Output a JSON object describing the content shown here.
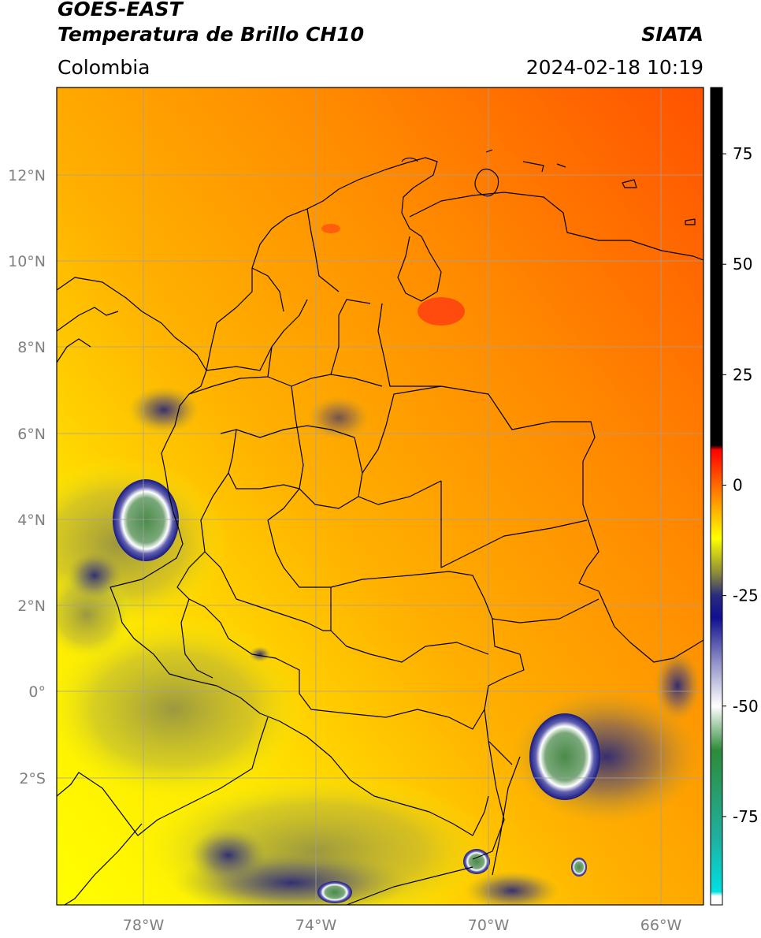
{
  "header": {
    "title_line1": "GOES-EAST",
    "title_line2": "Temperatura de Brillo CH10",
    "region": "Colombia",
    "agency": "SIATA",
    "datetime": "2024-02-18 10:19"
  },
  "map": {
    "lon_ticks": [
      "78°W",
      "74°W",
      "70°W",
      "66°W"
    ],
    "lat_ticks": [
      "12°N",
      "10°N",
      "8°N",
      "6°N",
      "4°N",
      "2°N",
      "0°",
      "2°S"
    ],
    "extent": {
      "lon_min": -80.0,
      "lon_max": -65.0,
      "lat_min": -5.0,
      "lat_max": 14.0
    },
    "gridline_color": "#a0a0a0"
  },
  "colorbar": {
    "labels": [
      "75",
      "50",
      "25",
      "0",
      "-25",
      "-50",
      "-75"
    ],
    "range": [
      -95,
      90
    ],
    "stops": [
      {
        "value": 90,
        "color": "#000000"
      },
      {
        "value": 9,
        "color": "#000000"
      },
      {
        "value": 8,
        "color": "#ff0000"
      },
      {
        "value": 0,
        "color": "#ff6a00"
      },
      {
        "value": -12,
        "color": "#ffff00"
      },
      {
        "value": -20,
        "color": "#8a8a3a"
      },
      {
        "value": -25,
        "color": "#2a2a80"
      },
      {
        "value": -30,
        "color": "#101090"
      },
      {
        "value": -40,
        "color": "#9090c8"
      },
      {
        "value": -50,
        "color": "#ffffff"
      },
      {
        "value": -60,
        "color": "#2e8b3a"
      },
      {
        "value": -80,
        "color": "#20b0a0"
      },
      {
        "value": -92,
        "color": "#00e0e0"
      },
      {
        "value": -93,
        "color": "#ffffff"
      },
      {
        "value": -95,
        "color": "#ffffff"
      }
    ]
  },
  "colors": {
    "warm_ne": "#ff5a00",
    "mid": "#ff9a00",
    "cool": "#ffd400",
    "yellow": "#ffff00",
    "cloud_dark": "#1a1a80",
    "cloud_top": "#4a8a4a"
  }
}
